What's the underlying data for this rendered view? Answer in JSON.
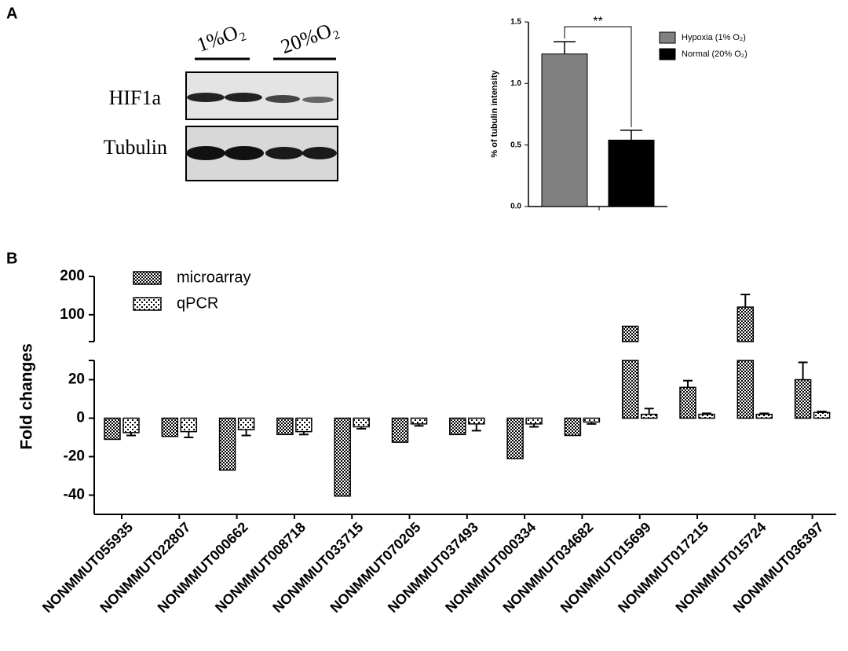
{
  "panel_labels": [
    "A",
    "B"
  ],
  "blot": {
    "lanes": [
      "1%O₂",
      "20%O₂"
    ],
    "rows": [
      "HIF1a",
      "Tubulin"
    ]
  },
  "chart_data": [
    {
      "type": "bar",
      "ylabel": "% of tubulin intensity",
      "categories": [
        null
      ],
      "series": [
        {
          "name": "Hypoxia (1% O₂)",
          "color": "#808080",
          "values": [
            1.24
          ],
          "errors": [
            0.1
          ]
        },
        {
          "name": "Normal (20% O₂)",
          "color": "#000000",
          "values": [
            0.54
          ],
          "errors": [
            0.08
          ]
        }
      ],
      "annotation": "**",
      "ylim": [
        0,
        1.5
      ],
      "yticks": [
        {
          "value": 0,
          "label": "0.0"
        },
        {
          "value": 0.5,
          "label": "0.5"
        },
        {
          "value": 1,
          "label": "1.0"
        },
        {
          "value": 1.5,
          "label": "1.5"
        }
      ]
    },
    {
      "type": "bar",
      "ylabel": "Fold changes",
      "categories": [
        "NONMMUT055935",
        "NONMMUT022807",
        "NONMMUT000662",
        "NONMMUT008718",
        "NONMMUT033715",
        "NONMMUT070205",
        "NONMMUT037493",
        "NONMMUT000334",
        "NONMMUT034682",
        "NONMMUT015699",
        "NONMMUT017215",
        "NONMMUT015724",
        "NONMMUT036397"
      ],
      "series": [
        {
          "name": "microarray",
          "color": "#000000",
          "values": [
            -11,
            -9.5,
            -27,
            -8.5,
            -40.5,
            -12.5,
            -8.5,
            -21,
            -9,
            70,
            16,
            120,
            20
          ],
          "errors": [
            null,
            null,
            null,
            null,
            null,
            null,
            null,
            null,
            null,
            null,
            3.5,
            33,
            9
          ]
        },
        {
          "name": "qPCR",
          "color": "#000000",
          "values": [
            -7.5,
            -7,
            -6,
            -7,
            -4.5,
            -3,
            -3,
            -3,
            -2,
            2,
            2,
            2,
            3
          ],
          "errors": [
            1.5,
            3,
            3,
            1.5,
            1,
            1,
            3.5,
            1.5,
            1,
            3,
            0.5,
            0.5,
            0.5
          ]
        }
      ],
      "ylim_lower": [
        -50,
        30
      ],
      "ylim_upper": [
        30,
        200
      ],
      "yticks": [
        -40,
        -20,
        0,
        20,
        100,
        200
      ]
    }
  ]
}
